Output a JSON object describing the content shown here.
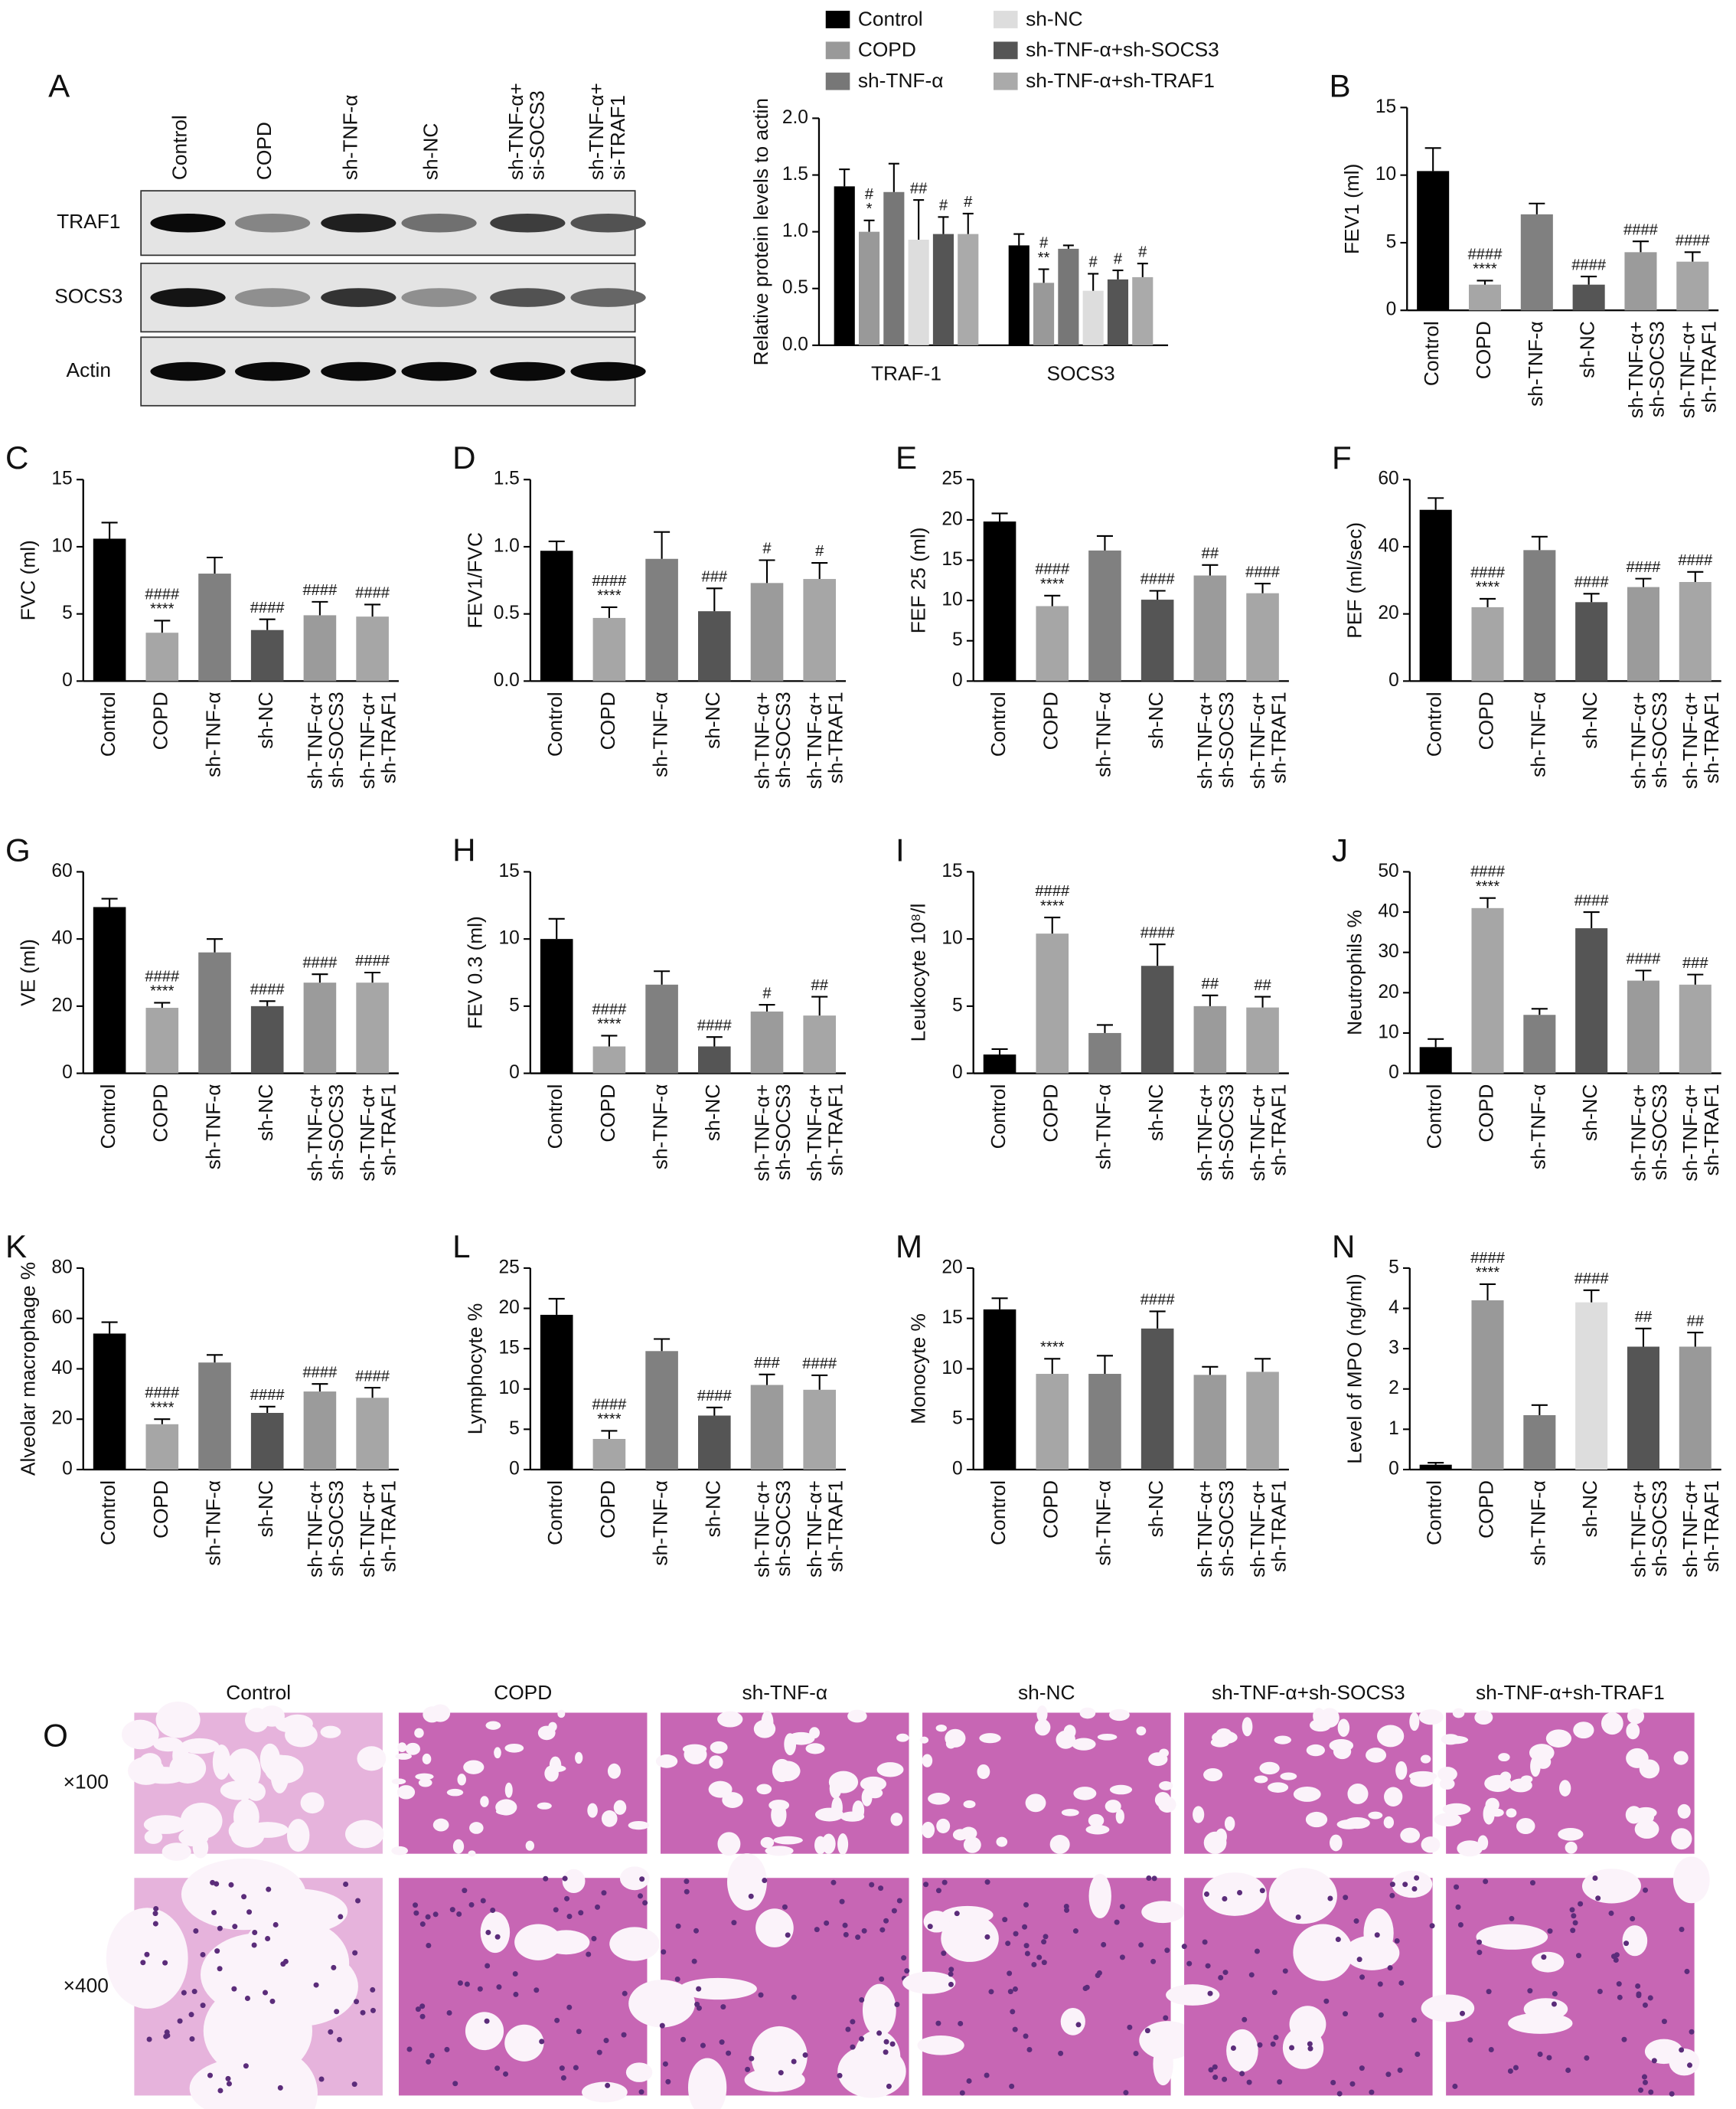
{
  "western_blot": {
    "label": "A",
    "lanes": [
      "Control",
      "COPD",
      "sh-TNF-α",
      "sh-NC",
      "sh-TNF-α+\nsi-SOCS3",
      "sh-TNF-α+\nsi-TRAF1"
    ],
    "rows": [
      "TRAF1",
      "SOCS3",
      "Actin"
    ]
  },
  "chart_data": [
    {
      "type": "grouped_bar",
      "ylabel": "Relative protein levels to actin",
      "categories": [
        "TRAF-1",
        "SOCS3"
      ],
      "ylim": [
        0,
        2
      ],
      "yticks": [
        {
          "value": 0,
          "label": "0.0"
        },
        0.5,
        {
          "value": 1,
          "label": "1.0"
        },
        1.5,
        {
          "value": 2,
          "label": "2.0"
        }
      ],
      "series": [
        {
          "name": "Control",
          "color": "#000000",
          "values": [
            1.4,
            0.88
          ],
          "errors": [
            0.15,
            0.1
          ],
          "annotations": [
            null,
            null
          ]
        },
        {
          "name": "COPD",
          "color": "#999999",
          "values": [
            1.0,
            0.55
          ],
          "errors": [
            0.1,
            0.12
          ],
          "annotations": [
            [
              "#",
              "*"
            ],
            [
              "#",
              "**"
            ]
          ]
        },
        {
          "name": "sh-TNF-α",
          "color": "#777777",
          "values": [
            1.35,
            0.85
          ],
          "errors": [
            0.25,
            0.03
          ],
          "annotations": [
            null,
            null
          ]
        },
        {
          "name": "sh-NC",
          "color": "#dddddd",
          "values": [
            0.93,
            0.48
          ],
          "errors": [
            0.35,
            0.15
          ],
          "annotations": [
            [
              "##"
            ],
            [
              "#"
            ]
          ]
        },
        {
          "name": "sh-TNF-α+sh-SOCS3",
          "color": "#555555",
          "values": [
            0.98,
            0.58
          ],
          "errors": [
            0.15,
            0.08
          ],
          "annotations": [
            [
              "#"
            ],
            [
              "#"
            ]
          ]
        },
        {
          "name": "sh-TNF-α+sh-TRAF1",
          "color": "#aaaaaa",
          "values": [
            0.98,
            0.6
          ],
          "errors": [
            0.18,
            0.12
          ],
          "annotations": [
            [
              "#"
            ],
            [
              "#"
            ]
          ]
        }
      ]
    },
    {
      "type": "bar",
      "label": "B",
      "ylabel": "FEV1 (ml)",
      "categories": [
        "Control",
        "COPD",
        "sh-TNF-α",
        "sh-NC",
        "sh-TNF-α+\nsh-SOCS3",
        "sh-TNF-α+\nsh-TRAF1"
      ],
      "colors": [
        "#000000",
        "#a6a6a6",
        "#808080",
        "#555555",
        "#9b9b9b",
        "#a6a6a6"
      ],
      "ylim": [
        0,
        15
      ],
      "yticks": [
        0,
        5,
        10,
        15
      ],
      "values": [
        10.3,
        1.9,
        7.1,
        1.9,
        4.3,
        3.6
      ],
      "errors": [
        1.7,
        0.3,
        0.8,
        0.6,
        0.8,
        0.7
      ],
      "annotations": [
        null,
        [
          "####",
          "****"
        ],
        null,
        [
          "####"
        ],
        [
          "####"
        ],
        [
          "####"
        ]
      ]
    },
    {
      "type": "bar",
      "label": "C",
      "ylabel": "FVC (ml)",
      "categories": [
        "Control",
        "COPD",
        "sh-TNF-α",
        "sh-NC",
        "sh-TNF-α+\nsh-SOCS3",
        "sh-TNF-α+\nsh-TRAF1"
      ],
      "colors": [
        "#000000",
        "#a6a6a6",
        "#808080",
        "#555555",
        "#9b9b9b",
        "#a6a6a6"
      ],
      "ylim": [
        0,
        15
      ],
      "yticks": [
        0,
        5,
        10,
        15
      ],
      "values": [
        10.6,
        3.6,
        8.0,
        3.8,
        4.9,
        4.8
      ],
      "errors": [
        1.2,
        0.9,
        1.2,
        0.8,
        1.0,
        0.9
      ],
      "annotations": [
        null,
        [
          "####",
          "****"
        ],
        null,
        [
          "####"
        ],
        [
          "####"
        ],
        [
          "####"
        ]
      ]
    },
    {
      "type": "bar",
      "label": "D",
      "ylabel": "FEV1/FVC",
      "categories": [
        "Control",
        "COPD",
        "sh-TNF-α",
        "sh-NC",
        "sh-TNF-α+\nsh-SOCS3",
        "sh-TNF-α+\nsh-TRAF1"
      ],
      "colors": [
        "#000000",
        "#a6a6a6",
        "#808080",
        "#555555",
        "#9b9b9b",
        "#a6a6a6"
      ],
      "ylim": [
        0,
        1.5
      ],
      "yticks": [
        {
          "value": 0,
          "label": "0.0"
        },
        0.5,
        {
          "value": 1,
          "label": "1.0"
        },
        1.5
      ],
      "values": [
        0.97,
        0.47,
        0.91,
        0.52,
        0.73,
        0.76
      ],
      "errors": [
        0.07,
        0.08,
        0.2,
        0.17,
        0.17,
        0.12
      ],
      "annotations": [
        null,
        [
          "####",
          "****"
        ],
        null,
        [
          "###"
        ],
        [
          "#"
        ],
        [
          "#"
        ]
      ]
    },
    {
      "type": "bar",
      "label": "E",
      "ylabel": "FEF 25 (ml)",
      "categories": [
        "Control",
        "COPD",
        "sh-TNF-α",
        "sh-NC",
        "sh-TNF-α+\nsh-SOCS3",
        "sh-TNF-α+\nsh-TRAF1"
      ],
      "colors": [
        "#000000",
        "#a6a6a6",
        "#808080",
        "#555555",
        "#9b9b9b",
        "#a6a6a6"
      ],
      "ylim": [
        0,
        25
      ],
      "yticks": [
        0,
        5,
        10,
        15,
        20,
        25
      ],
      "values": [
        19.8,
        9.3,
        16.2,
        10.1,
        13.1,
        10.9
      ],
      "errors": [
        1.0,
        1.3,
        1.8,
        1.1,
        1.3,
        1.2
      ],
      "annotations": [
        null,
        [
          "####",
          "****"
        ],
        null,
        [
          "####"
        ],
        [
          "##"
        ],
        [
          "####"
        ]
      ]
    },
    {
      "type": "bar",
      "label": "F",
      "ylabel": "PEF (ml/sec)",
      "categories": [
        "Control",
        "COPD",
        "sh-TNF-α",
        "sh-NC",
        "sh-TNF-α+\nsh-SOCS3",
        "sh-TNF-α+\nsh-TRAF1"
      ],
      "colors": [
        "#000000",
        "#a6a6a6",
        "#808080",
        "#555555",
        "#9b9b9b",
        "#a6a6a6"
      ],
      "ylim": [
        0,
        60
      ],
      "yticks": [
        0,
        20,
        40,
        60
      ],
      "values": [
        51,
        22,
        39,
        23.5,
        28,
        29.5
      ],
      "errors": [
        3.5,
        2.5,
        4,
        2.5,
        2.5,
        3
      ],
      "annotations": [
        null,
        [
          "####",
          "****"
        ],
        null,
        [
          "####"
        ],
        [
          "####"
        ],
        [
          "####"
        ]
      ]
    },
    {
      "type": "bar",
      "label": "G",
      "ylabel": "VE (ml)",
      "categories": [
        "Control",
        "COPD",
        "sh-TNF-α",
        "sh-NC",
        "sh-TNF-α+\nsh-SOCS3",
        "sh-TNF-α+\nsh-TRAF1"
      ],
      "colors": [
        "#000000",
        "#a6a6a6",
        "#808080",
        "#555555",
        "#9b9b9b",
        "#a6a6a6"
      ],
      "ylim": [
        0,
        60
      ],
      "yticks": [
        0,
        20,
        40,
        60
      ],
      "values": [
        49.5,
        19.5,
        36,
        20,
        27,
        27
      ],
      "errors": [
        2.5,
        1.5,
        4,
        1.5,
        2.5,
        3
      ],
      "annotations": [
        null,
        [
          "####",
          "****"
        ],
        null,
        [
          "####"
        ],
        [
          "####"
        ],
        [
          "####"
        ]
      ]
    },
    {
      "type": "bar",
      "label": "H",
      "ylabel": "FEV 0.3 (ml)",
      "categories": [
        "Control",
        "COPD",
        "sh-TNF-α",
        "sh-NC",
        "sh-TNF-α+\nsh-SOCS3",
        "sh-TNF-α+\nsh-TRAF1"
      ],
      "colors": [
        "#000000",
        "#a6a6a6",
        "#808080",
        "#555555",
        "#9b9b9b",
        "#a6a6a6"
      ],
      "ylim": [
        0,
        15
      ],
      "yticks": [
        0,
        5,
        10,
        15
      ],
      "values": [
        10,
        2,
        6.6,
        2,
        4.6,
        4.3
      ],
      "errors": [
        1.5,
        0.8,
        1,
        0.7,
        0.5,
        1.4
      ],
      "annotations": [
        null,
        [
          "####",
          "****"
        ],
        null,
        [
          "####"
        ],
        [
          "#"
        ],
        [
          "##"
        ]
      ]
    },
    {
      "type": "bar",
      "label": "I",
      "ylabel": "Leukocyte 10⁸/l",
      "categories": [
        "Control",
        "COPD",
        "sh-TNF-α",
        "sh-NC",
        "sh-TNF-α+\nsh-SOCS3",
        "sh-TNF-α+\nsh-TRAF1"
      ],
      "colors": [
        "#000000",
        "#a6a6a6",
        "#808080",
        "#555555",
        "#9b9b9b",
        "#a6a6a6"
      ],
      "ylim": [
        0,
        15
      ],
      "yticks": [
        0,
        5,
        10,
        15
      ],
      "values": [
        1.4,
        10.4,
        3,
        8,
        5,
        4.9
      ],
      "errors": [
        0.4,
        1.2,
        0.6,
        1.6,
        0.8,
        0.8
      ],
      "annotations": [
        null,
        [
          "####",
          "****"
        ],
        null,
        [
          "####"
        ],
        [
          "##"
        ],
        [
          "##"
        ]
      ]
    },
    {
      "type": "bar",
      "label": "J",
      "ylabel": "Neutrophils %",
      "categories": [
        "Control",
        "COPD",
        "sh-TNF-α",
        "sh-NC",
        "sh-TNF-α+\nsh-SOCS3",
        "sh-TNF-α+\nsh-TRAF1"
      ],
      "colors": [
        "#000000",
        "#a6a6a6",
        "#808080",
        "#555555",
        "#9b9b9b",
        "#a6a6a6"
      ],
      "ylim": [
        0,
        50
      ],
      "yticks": [
        0,
        10,
        20,
        30,
        40,
        50
      ],
      "values": [
        6.5,
        41,
        14.5,
        36,
        23,
        22
      ],
      "errors": [
        2,
        2.5,
        1.5,
        4,
        2.5,
        2.5
      ],
      "annotations": [
        null,
        [
          "####",
          "****"
        ],
        null,
        [
          "####"
        ],
        [
          "####"
        ],
        [
          "###"
        ]
      ]
    },
    {
      "type": "bar",
      "label": "K",
      "ylabel": "Alveolar macrophage %",
      "categories": [
        "Control",
        "COPD",
        "sh-TNF-α",
        "sh-NC",
        "sh-TNF-α+\nsh-SOCS3",
        "sh-TNF-α+\nsh-TRAF1"
      ],
      "colors": [
        "#000000",
        "#a6a6a6",
        "#808080",
        "#555555",
        "#9b9b9b",
        "#a6a6a6"
      ],
      "ylim": [
        0,
        80
      ],
      "yticks": [
        0,
        20,
        40,
        60,
        80
      ],
      "values": [
        54,
        18,
        42.5,
        22.5,
        31,
        28.5
      ],
      "errors": [
        4.5,
        2,
        3,
        2.5,
        3,
        4
      ],
      "annotations": [
        null,
        [
          "####",
          "****"
        ],
        null,
        [
          "####"
        ],
        [
          "####"
        ],
        [
          "####"
        ]
      ]
    },
    {
      "type": "bar",
      "label": "L",
      "ylabel": "Lymphocyte %",
      "categories": [
        "Control",
        "COPD",
        "sh-TNF-α",
        "sh-NC",
        "sh-TNF-α+\nsh-SOCS3",
        "sh-TNF-α+\nsh-TRAF1"
      ],
      "colors": [
        "#000000",
        "#a6a6a6",
        "#808080",
        "#555555",
        "#9b9b9b",
        "#a6a6a6"
      ],
      "ylim": [
        0,
        25
      ],
      "yticks": [
        0,
        5,
        10,
        15,
        20,
        25
      ],
      "values": [
        19.2,
        3.8,
        14.7,
        6.7,
        10.5,
        9.9
      ],
      "errors": [
        2,
        1,
        1.5,
        1,
        1.3,
        1.8
      ],
      "annotations": [
        null,
        [
          "####",
          "****"
        ],
        null,
        [
          "####"
        ],
        [
          "###"
        ],
        [
          "####"
        ]
      ]
    },
    {
      "type": "bar",
      "label": "M",
      "ylabel": "Monocyte %",
      "categories": [
        "Control",
        "COPD",
        "sh-TNF-α",
        "sh-NC",
        "sh-TNF-α+\nsh-SOCS3",
        "sh-TNF-α+\nsh-TRAF1"
      ],
      "colors": [
        "#000000",
        "#a6a6a6",
        "#808080",
        "#555555",
        "#9b9b9b",
        "#a6a6a6"
      ],
      "ylim": [
        0,
        20
      ],
      "yticks": [
        0,
        5,
        10,
        15,
        20
      ],
      "values": [
        15.9,
        9.5,
        9.5,
        14,
        9.4,
        9.7
      ],
      "errors": [
        1.1,
        1.5,
        1.8,
        1.7,
        0.8,
        1.3
      ],
      "annotations": [
        null,
        [
          "****"
        ],
        null,
        [
          "####"
        ],
        null,
        null
      ]
    },
    {
      "type": "bar",
      "label": "N",
      "ylabel": "Level of MPO (ng/ml)",
      "categories": [
        "Control",
        "COPD",
        "sh-TNF-α",
        "sh-NC",
        "sh-TNF-α+\nsh-SOCS3",
        "sh-TNF-α+\nsh-TRAF1"
      ],
      "colors": [
        "#000000",
        "#999999",
        "#808080",
        "#dddddd",
        "#555555",
        "#999999"
      ],
      "ylim": [
        0,
        5
      ],
      "yticks": [
        0,
        1,
        2,
        3,
        4,
        5
      ],
      "values": [
        0.12,
        4.2,
        1.35,
        4.15,
        3.05,
        3.05
      ],
      "errors": [
        0.05,
        0.4,
        0.25,
        0.3,
        0.45,
        0.35
      ],
      "annotations": [
        null,
        [
          "####",
          "****"
        ],
        null,
        [
          "####"
        ],
        [
          "##"
        ],
        [
          "##"
        ]
      ]
    }
  ],
  "histology": {
    "label": "O",
    "columns": [
      "Control",
      "COPD",
      "sh-TNF-α",
      "sh-NC",
      "sh-TNF-α+sh-SOCS3",
      "sh-TNF-α+sh-TRAF1"
    ],
    "rows": [
      "×100",
      "×400"
    ]
  }
}
